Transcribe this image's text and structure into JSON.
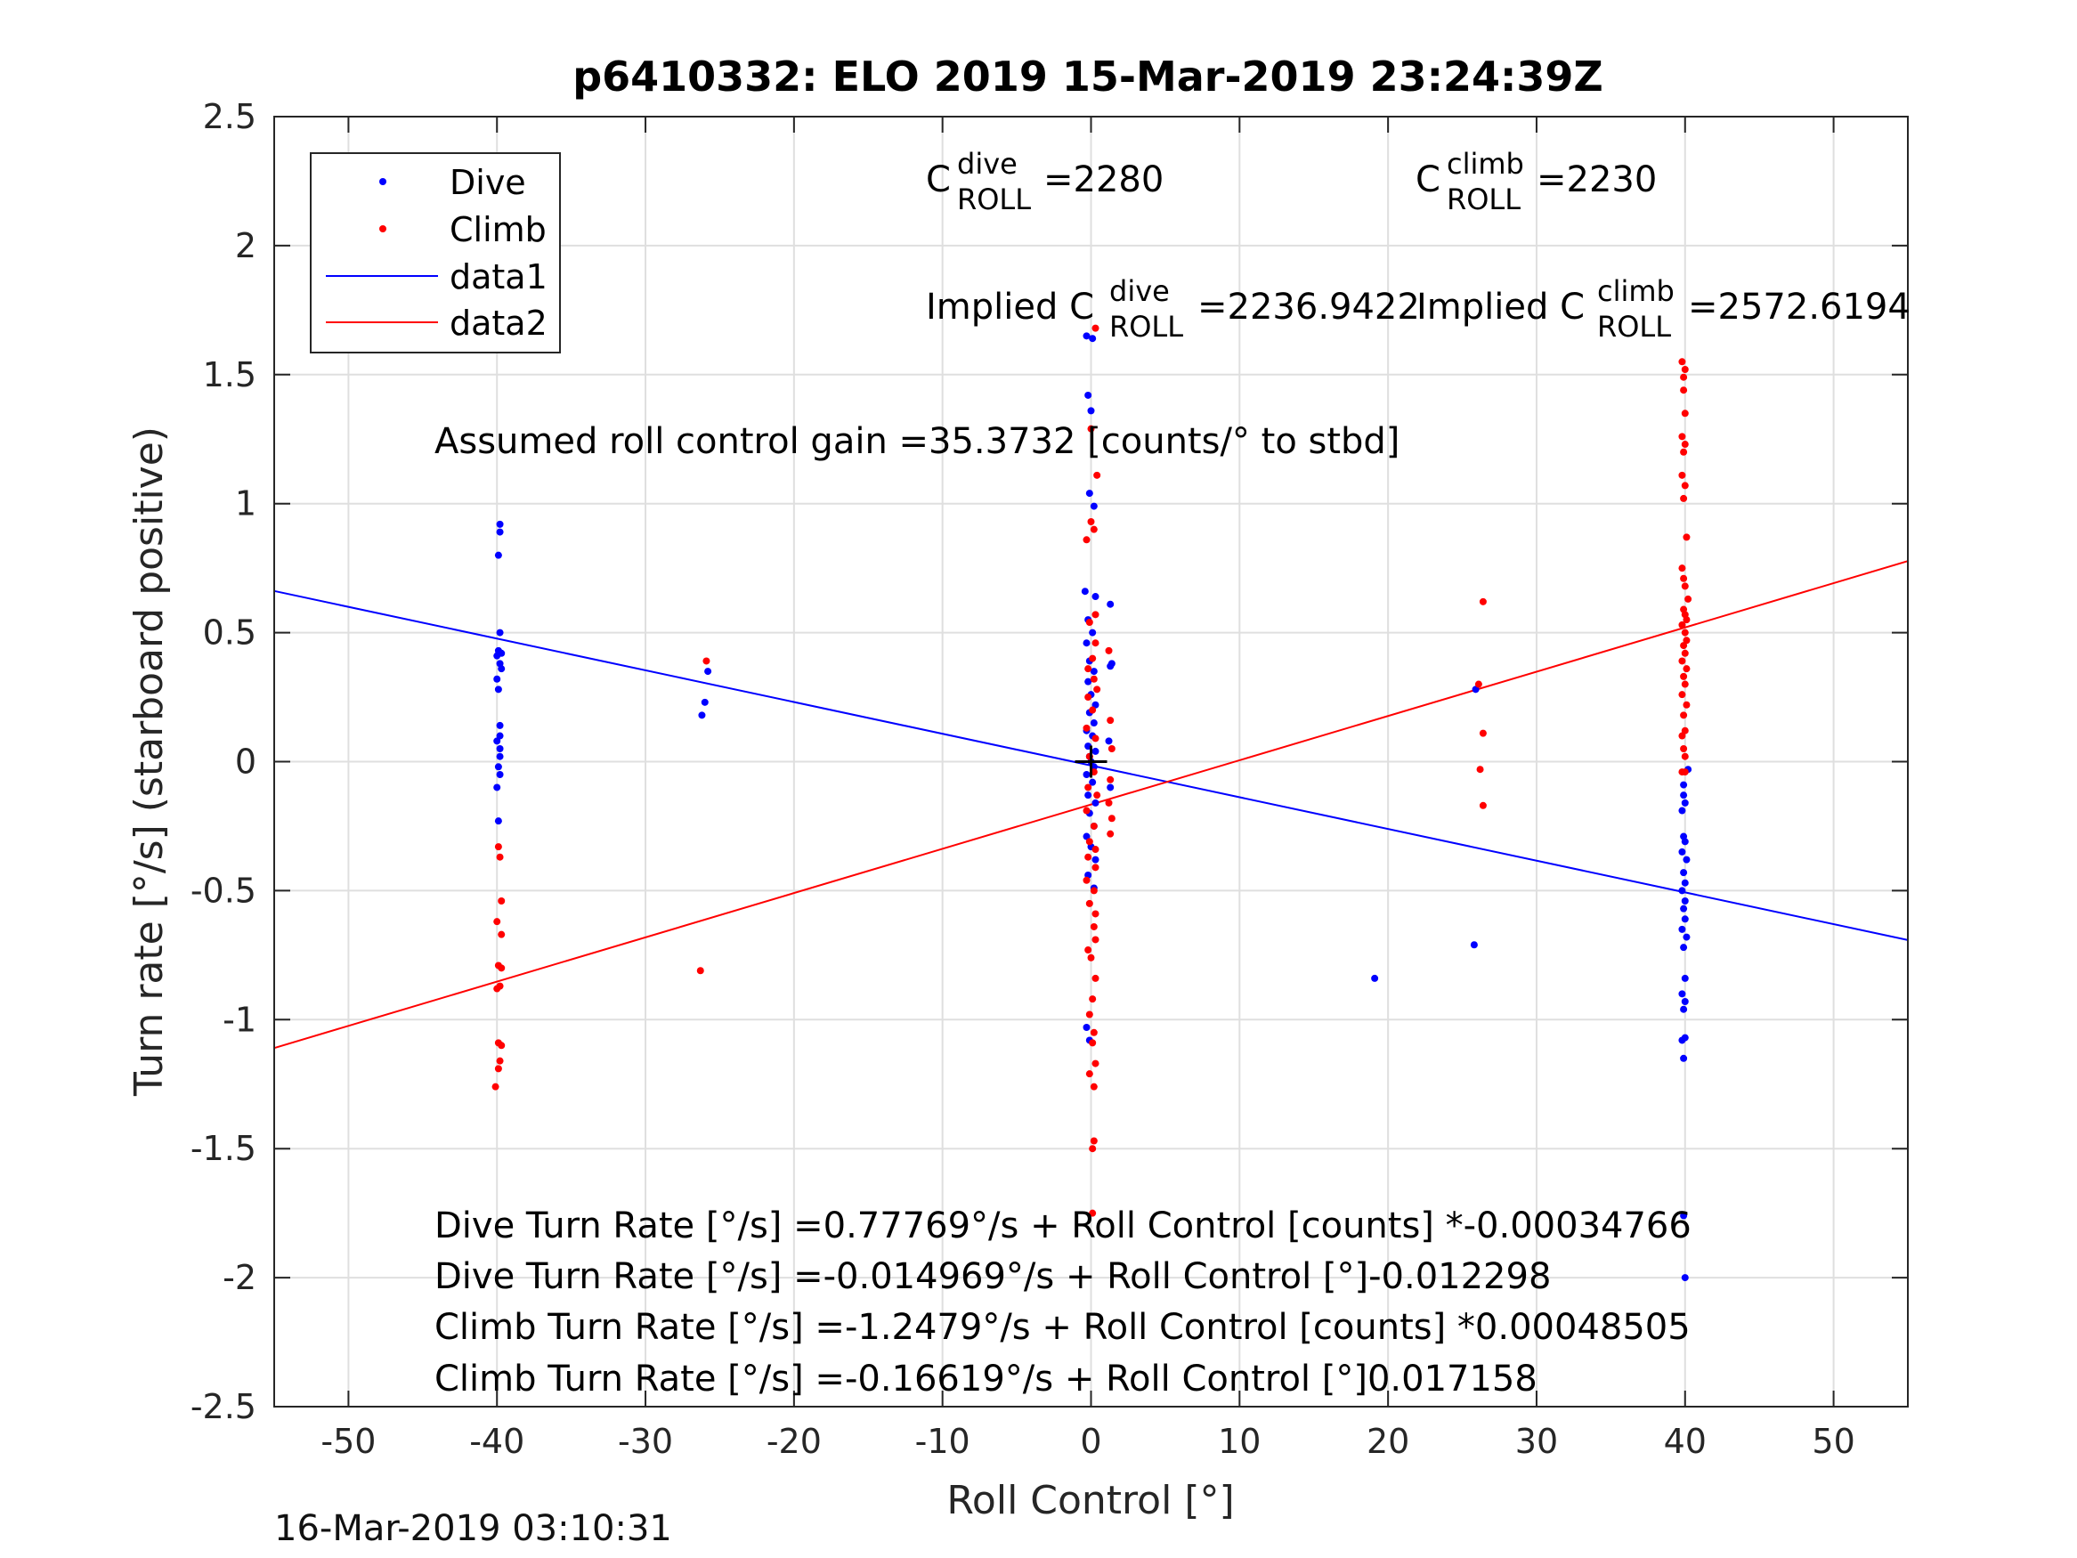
{
  "footer_timestamp": "16-Mar-2019 03:10:31",
  "chart_data": {
    "type": "scatter",
    "title": "p6410332: ELO 2019 15-Mar-2019 23:24:39Z",
    "xlabel": "Roll Control [°]",
    "ylabel": "Turn rate [°/s] (starboard positive)",
    "xlim": [
      -55,
      55
    ],
    "ylim": [
      -2.5,
      2.5
    ],
    "x_ticks": [
      -50,
      -40,
      -30,
      -20,
      -10,
      0,
      10,
      20,
      30,
      40,
      50
    ],
    "x_tick_labels": [
      "-50",
      "-40",
      "-30",
      "-20",
      "-10",
      "0",
      "10",
      "20",
      "30",
      "40",
      "50"
    ],
    "y_ticks": [
      -2.5,
      -2,
      -1.5,
      -1,
      -0.5,
      0,
      0.5,
      1,
      1.5,
      2,
      2.5
    ],
    "y_tick_labels": [
      "-2.5",
      "-2",
      "-1.5",
      "-1",
      "-0.5",
      "0",
      "0.5",
      "1",
      "1.5",
      "2",
      "2.5"
    ],
    "grid": true,
    "legend_position": "top-left",
    "colors": {
      "dive": "#0000ff",
      "climb": "#ff0000",
      "axis": "#262626",
      "grid": "#dfdfdf",
      "origin_marker": "#000000"
    },
    "legend": [
      {
        "label": "Dive",
        "kind": "dot",
        "color": "#0000ff"
      },
      {
        "label": "Climb",
        "kind": "dot",
        "color": "#ff0000"
      },
      {
        "label": "data1",
        "kind": "line",
        "color": "#0000ff"
      },
      {
        "label": "data2",
        "kind": "line",
        "color": "#ff0000"
      }
    ],
    "annotations": {
      "c_dive": {
        "base": "C",
        "sup": "dive",
        "sub": "ROLL",
        "value": "=2280"
      },
      "c_climb": {
        "base": "C",
        "sup": "climb",
        "sub": "ROLL",
        "value": "=2230"
      },
      "implied_dive": {
        "base": "Implied C",
        "sup": "dive",
        "sub": "ROLL",
        "value": "=2236.9422"
      },
      "implied_climb": {
        "base": "Implied C",
        "sup": "climb",
        "sub": "ROLL",
        "value": "=2572.6194"
      },
      "gain": "Assumed roll control gain =35.3732 [counts/° to stbd]",
      "eq_dive_counts": "Dive Turn Rate [°/s] =0.77769°/s + Roll Control [counts] *-0.00034766",
      "eq_dive_deg": "Dive Turn Rate [°/s] =-0.014969°/s + Roll Control [°]-0.012298",
      "eq_climb_counts": "Climb Turn Rate [°/s] =-1.2479°/s + Roll Control [counts] *0.00048505",
      "eq_climb_deg": "Climb Turn Rate [°/s] =-0.16619°/s + Roll Control [°]0.017158"
    },
    "origin_marker": {
      "x": 0,
      "y": 0
    },
    "series": [
      {
        "name": "Dive",
        "kind": "points",
        "color": "#0000ff",
        "points": [
          [
            -39.8,
            0.92
          ],
          [
            -39.8,
            0.89
          ],
          [
            -39.9,
            0.8
          ],
          [
            -39.8,
            0.5
          ],
          [
            -39.9,
            0.43
          ],
          [
            -39.7,
            0.42
          ],
          [
            -40.0,
            0.41
          ],
          [
            -39.8,
            0.38
          ],
          [
            -39.7,
            0.36
          ],
          [
            -40.0,
            0.32
          ],
          [
            -39.9,
            0.28
          ],
          [
            -39.8,
            0.14
          ],
          [
            -39.8,
            0.1
          ],
          [
            -40.0,
            0.08
          ],
          [
            -39.8,
            0.05
          ],
          [
            -39.8,
            0.02
          ],
          [
            -39.9,
            -0.02
          ],
          [
            -39.8,
            -0.05
          ],
          [
            -40.0,
            -0.1
          ],
          [
            -39.9,
            -0.23
          ],
          [
            -25.8,
            0.35
          ],
          [
            -26.0,
            0.23
          ],
          [
            -26.2,
            0.18
          ],
          [
            -0.3,
            1.65
          ],
          [
            0.1,
            1.64
          ],
          [
            -0.2,
            1.42
          ],
          [
            0.0,
            1.36
          ],
          [
            -0.1,
            1.04
          ],
          [
            0.2,
            0.99
          ],
          [
            -0.4,
            0.66
          ],
          [
            0.3,
            0.64
          ],
          [
            1.3,
            0.61
          ],
          [
            -0.2,
            0.55
          ],
          [
            0.1,
            0.5
          ],
          [
            -0.3,
            0.46
          ],
          [
            -0.1,
            0.39
          ],
          [
            1.4,
            0.38
          ],
          [
            1.3,
            0.37
          ],
          [
            0.2,
            0.35
          ],
          [
            -0.2,
            0.31
          ],
          [
            0.0,
            0.26
          ],
          [
            0.3,
            0.22
          ],
          [
            -0.1,
            0.19
          ],
          [
            0.2,
            0.15
          ],
          [
            -0.3,
            0.12
          ],
          [
            0.1,
            0.1
          ],
          [
            1.2,
            0.08
          ],
          [
            -0.2,
            0.06
          ],
          [
            0.3,
            0.04
          ],
          [
            -0.1,
            0.02
          ],
          [
            0.0,
            0.0
          ],
          [
            0.2,
            -0.02
          ],
          [
            -0.3,
            -0.05
          ],
          [
            0.1,
            -0.08
          ],
          [
            1.3,
            -0.1
          ],
          [
            -0.2,
            -0.13
          ],
          [
            0.3,
            -0.16
          ],
          [
            -0.1,
            -0.2
          ],
          [
            0.2,
            -0.25
          ],
          [
            -0.3,
            -0.29
          ],
          [
            0.0,
            -0.33
          ],
          [
            0.3,
            -0.38
          ],
          [
            -0.2,
            -0.44
          ],
          [
            0.2,
            -0.49
          ],
          [
            -0.3,
            -1.03
          ],
          [
            -0.1,
            -1.08
          ],
          [
            19.1,
            -0.84
          ],
          [
            25.9,
            0.28
          ],
          [
            25.8,
            -0.71
          ],
          [
            40.2,
            -0.03
          ],
          [
            39.9,
            -0.09
          ],
          [
            39.9,
            -0.13
          ],
          [
            40.0,
            -0.16
          ],
          [
            39.8,
            -0.19
          ],
          [
            39.9,
            -0.29
          ],
          [
            40.0,
            -0.31
          ],
          [
            39.8,
            -0.35
          ],
          [
            40.1,
            -0.38
          ],
          [
            39.9,
            -0.43
          ],
          [
            40.0,
            -0.47
          ],
          [
            39.8,
            -0.5
          ],
          [
            40.0,
            -0.54
          ],
          [
            39.9,
            -0.57
          ],
          [
            40.0,
            -0.61
          ],
          [
            39.8,
            -0.65
          ],
          [
            40.1,
            -0.68
          ],
          [
            39.9,
            -0.72
          ],
          [
            40.0,
            -0.84
          ],
          [
            39.8,
            -0.9
          ],
          [
            40.0,
            -0.93
          ],
          [
            39.9,
            -0.96
          ],
          [
            40.0,
            -1.07
          ],
          [
            39.8,
            -1.08
          ],
          [
            39.9,
            -1.15
          ],
          [
            39.9,
            -1.76
          ],
          [
            40.0,
            -2.0
          ]
        ]
      },
      {
        "name": "Climb",
        "kind": "points",
        "color": "#ff0000",
        "points": [
          [
            -39.9,
            -0.33
          ],
          [
            -39.8,
            -0.37
          ],
          [
            -39.7,
            -0.54
          ],
          [
            -40.0,
            -0.62
          ],
          [
            -39.7,
            -0.67
          ],
          [
            -39.9,
            -0.79
          ],
          [
            -39.7,
            -0.8
          ],
          [
            -39.8,
            -0.87
          ],
          [
            -40.0,
            -0.88
          ],
          [
            -39.9,
            -1.09
          ],
          [
            -39.7,
            -1.1
          ],
          [
            -39.8,
            -1.16
          ],
          [
            -39.9,
            -1.19
          ],
          [
            -40.1,
            -1.26
          ],
          [
            -25.9,
            0.39
          ],
          [
            -26.3,
            -0.81
          ],
          [
            0.3,
            1.68
          ],
          [
            0.0,
            1.29
          ],
          [
            0.4,
            1.11
          ],
          [
            0.0,
            0.93
          ],
          [
            0.2,
            0.9
          ],
          [
            -0.3,
            0.86
          ],
          [
            0.3,
            0.57
          ],
          [
            -0.1,
            0.54
          ],
          [
            0.3,
            0.46
          ],
          [
            1.2,
            0.43
          ],
          [
            0.1,
            0.4
          ],
          [
            -0.2,
            0.36
          ],
          [
            0.2,
            0.32
          ],
          [
            0.4,
            0.28
          ],
          [
            -0.2,
            0.25
          ],
          [
            0.1,
            0.2
          ],
          [
            1.3,
            0.16
          ],
          [
            -0.3,
            0.13
          ],
          [
            0.3,
            0.09
          ],
          [
            1.4,
            0.05
          ],
          [
            -0.1,
            0.02
          ],
          [
            0.2,
            -0.04
          ],
          [
            1.3,
            -0.07
          ],
          [
            -0.2,
            -0.1
          ],
          [
            0.4,
            -0.13
          ],
          [
            1.2,
            -0.16
          ],
          [
            -0.3,
            -0.19
          ],
          [
            1.4,
            -0.22
          ],
          [
            0.2,
            -0.25
          ],
          [
            1.3,
            -0.28
          ],
          [
            -0.1,
            -0.31
          ],
          [
            0.3,
            -0.34
          ],
          [
            -0.2,
            -0.37
          ],
          [
            0.3,
            -0.41
          ],
          [
            -0.3,
            -0.46
          ],
          [
            0.2,
            -0.5
          ],
          [
            -0.1,
            -0.55
          ],
          [
            0.3,
            -0.59
          ],
          [
            0.2,
            -0.64
          ],
          [
            0.3,
            -0.69
          ],
          [
            -0.2,
            -0.73
          ],
          [
            0.0,
            -0.76
          ],
          [
            0.3,
            -0.84
          ],
          [
            0.1,
            -0.92
          ],
          [
            -0.1,
            -0.98
          ],
          [
            0.2,
            -1.05
          ],
          [
            0.1,
            -1.09
          ],
          [
            0.3,
            -1.17
          ],
          [
            -0.1,
            -1.21
          ],
          [
            0.2,
            -1.26
          ],
          [
            0.2,
            -1.47
          ],
          [
            0.1,
            -1.5
          ],
          [
            0.1,
            -1.75
          ],
          [
            26.4,
            0.62
          ],
          [
            26.1,
            0.3
          ],
          [
            26.4,
            0.11
          ],
          [
            26.2,
            -0.03
          ],
          [
            26.4,
            -0.17
          ],
          [
            39.8,
            1.55
          ],
          [
            40.0,
            1.52
          ],
          [
            39.9,
            1.49
          ],
          [
            39.9,
            1.44
          ],
          [
            40.0,
            1.35
          ],
          [
            39.8,
            1.26
          ],
          [
            40.0,
            1.23
          ],
          [
            39.9,
            1.2
          ],
          [
            39.8,
            1.11
          ],
          [
            40.0,
            1.07
          ],
          [
            39.9,
            1.02
          ],
          [
            40.1,
            0.87
          ],
          [
            39.8,
            0.75
          ],
          [
            39.9,
            0.71
          ],
          [
            40.0,
            0.68
          ],
          [
            40.2,
            0.63
          ],
          [
            39.9,
            0.59
          ],
          [
            40.0,
            0.57
          ],
          [
            40.1,
            0.55
          ],
          [
            39.8,
            0.53
          ],
          [
            40.0,
            0.5
          ],
          [
            40.1,
            0.47
          ],
          [
            39.9,
            0.45
          ],
          [
            40.0,
            0.42
          ],
          [
            39.8,
            0.39
          ],
          [
            40.1,
            0.36
          ],
          [
            39.9,
            0.33
          ],
          [
            40.0,
            0.3
          ],
          [
            39.8,
            0.26
          ],
          [
            40.1,
            0.22
          ],
          [
            39.9,
            0.18
          ],
          [
            40.0,
            0.12
          ],
          [
            39.8,
            0.1
          ],
          [
            39.9,
            0.05
          ],
          [
            40.0,
            0.02
          ],
          [
            39.8,
            -0.04
          ],
          [
            40.0,
            -0.04
          ]
        ]
      },
      {
        "name": "data1",
        "kind": "line",
        "color": "#0000ff",
        "x": [
          -55,
          55
        ],
        "y": [
          0.6614,
          -0.6913
        ]
      },
      {
        "name": "data2",
        "kind": "line",
        "color": "#ff0000",
        "x": [
          -55,
          55
        ],
        "y": [
          -1.1099,
          0.7775
        ]
      }
    ]
  }
}
